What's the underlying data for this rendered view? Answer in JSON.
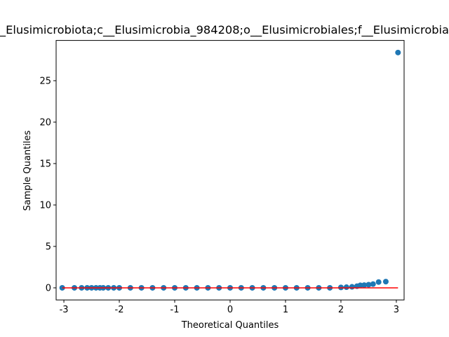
{
  "chart_data": {
    "type": "scatter",
    "title": "_Elusimicrobiota;c__Elusimicrobia_984208;o__Elusimicrobiales;f__Elusimicrobia",
    "xlabel": "Theoretical Quantiles",
    "ylabel": "Sample Quantiles",
    "series": [
      {
        "color": "#1f77b4",
        "x": [
          -3.03,
          -2.81,
          -2.68,
          -2.58,
          -2.5,
          -2.42,
          -2.35,
          -2.29,
          -2.2,
          -2.1,
          -2.0,
          -1.8,
          -1.6,
          -1.4,
          -1.2,
          -1.0,
          -0.8,
          -0.6,
          -0.4,
          -0.2,
          0,
          0.2,
          0.4,
          0.6,
          0.8,
          1.0,
          1.2,
          1.4,
          1.6,
          1.8,
          2.0,
          2.1,
          2.2,
          2.29,
          2.35,
          2.42,
          2.5,
          2.58,
          2.68,
          2.81,
          3.03
        ],
        "values": [
          0,
          0,
          0,
          0,
          0,
          0,
          0,
          0,
          0,
          0,
          0,
          0,
          0,
          0,
          0,
          0,
          0,
          0,
          0,
          0,
          0,
          0,
          0,
          0,
          0,
          0,
          0,
          0,
          0,
          0,
          0.05,
          0.08,
          0.12,
          0.2,
          0.3,
          0.33,
          0.38,
          0.45,
          0.7,
          0.75,
          28.4
        ]
      }
    ],
    "reference_line": {
      "color": "#ff0000",
      "x": [
        -3.03,
        3.03
      ],
      "values": [
        0,
        0
      ]
    },
    "xlim": [
      -3.14,
      3.14
    ],
    "xticks": [
      -3,
      -2,
      -1,
      0,
      1,
      2,
      3
    ],
    "ylim": [
      -1.46,
      29.86
    ],
    "yticks": [
      0,
      5,
      10,
      15,
      20,
      25
    ]
  }
}
